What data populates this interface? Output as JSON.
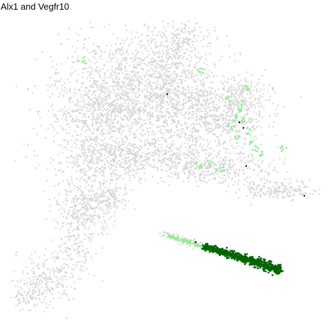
{
  "chart_data": {
    "type": "scatter",
    "title": "Alx1 and Vegfr10",
    "xlabel": "",
    "ylabel": "",
    "grid": false,
    "legend": "none",
    "colors": {
      "background_cells": "#d3d3d3",
      "light_expression": "#90ee90",
      "dark_expression": "#006400",
      "black_cells": "#000000"
    },
    "series": [
      {
        "color": "#d3d3d3",
        "cells": "background"
      },
      {
        "color": "#90ee90",
        "cells": "light green"
      },
      {
        "color": "#006400",
        "cells": "dark green"
      }
    ]
  }
}
